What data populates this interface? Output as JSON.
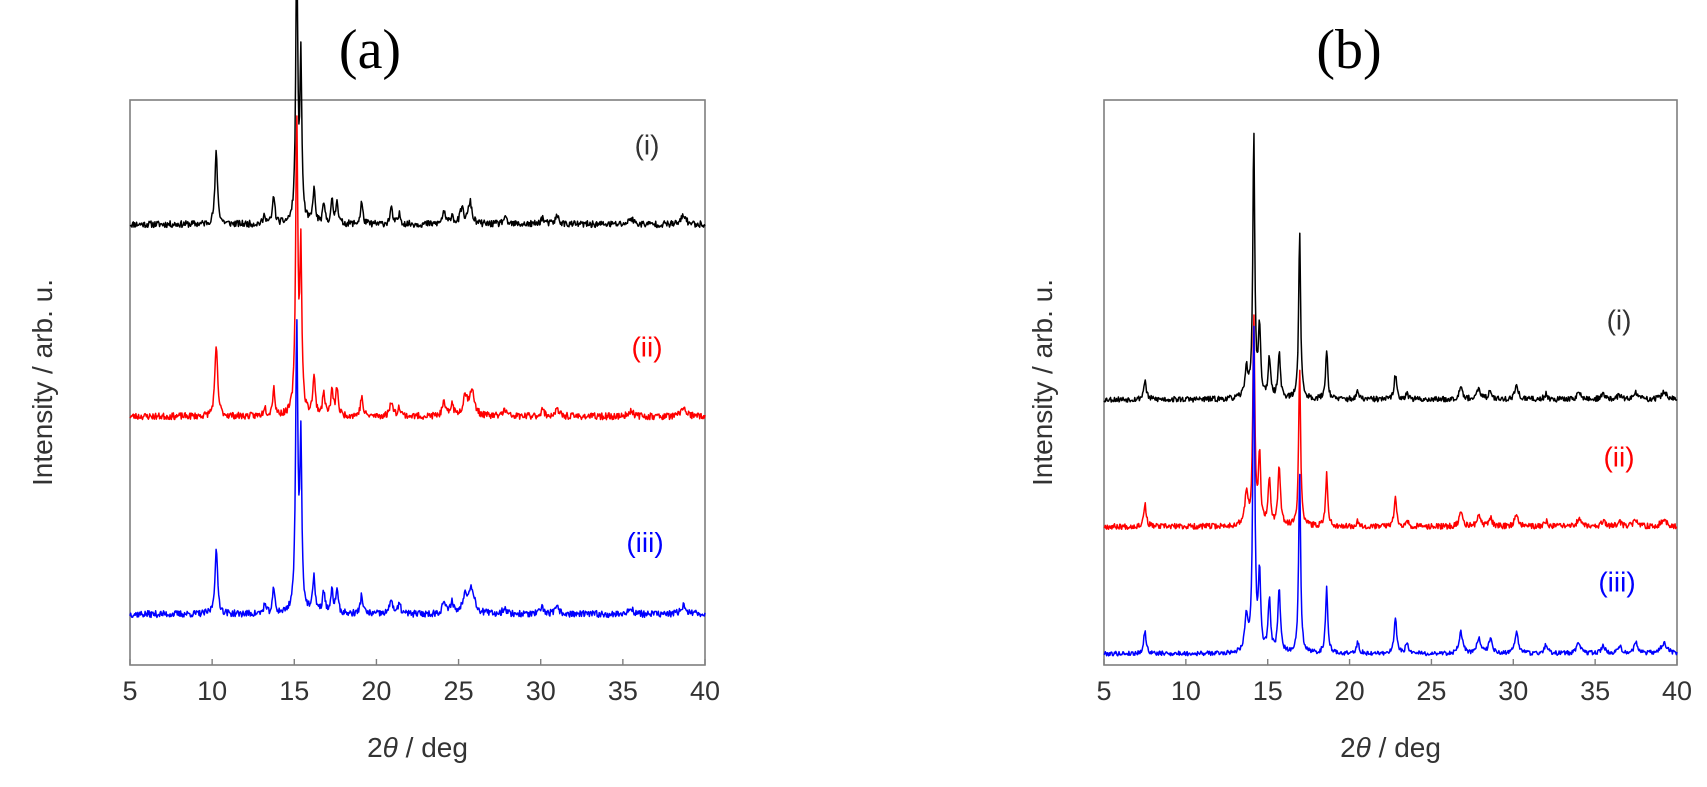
{
  "chart_data": [
    {
      "panel_label": "(a)",
      "type": "line",
      "xlabel_prefix": "2",
      "xlabel_theta": "θ",
      "xlabel_suffix": " / deg",
      "ylabel": "Intensity / arb. u.",
      "xlim": [
        5,
        40
      ],
      "xticks": [
        5,
        10,
        15,
        20,
        25,
        30,
        35,
        40
      ],
      "yticks": [],
      "grid": false,
      "series": [
        {
          "name": "(i)",
          "color": "#000000",
          "baseline": 0.78,
          "scale": 0.56,
          "noise": 0.006,
          "seed": 11,
          "peaks": [
            [
              10.25,
              0.23,
              0.09
            ],
            [
              13.2,
              0.03,
              0.08
            ],
            [
              13.75,
              0.09,
              0.08
            ],
            [
              15.15,
              0.88,
              0.07
            ],
            [
              15.4,
              0.5,
              0.07
            ],
            [
              16.2,
              0.11,
              0.08
            ],
            [
              16.8,
              0.06,
              0.08
            ],
            [
              17.3,
              0.07,
              0.08
            ],
            [
              17.6,
              0.08,
              0.07
            ],
            [
              19.1,
              0.07,
              0.08
            ],
            [
              20.9,
              0.05,
              0.09
            ],
            [
              21.4,
              0.03,
              0.09
            ],
            [
              24.1,
              0.04,
              0.1
            ],
            [
              24.6,
              0.03,
              0.09
            ],
            [
              25.2,
              0.05,
              0.12
            ],
            [
              25.7,
              0.07,
              0.13
            ],
            [
              27.8,
              0.02,
              0.12
            ],
            [
              30.1,
              0.02,
              0.12
            ],
            [
              31.0,
              0.025,
              0.14
            ],
            [
              35.5,
              0.02,
              0.15
            ],
            [
              38.7,
              0.03,
              0.15
            ]
          ]
        },
        {
          "name": "(ii)",
          "color": "#ff0000",
          "baseline": 0.44,
          "scale": 0.56,
          "noise": 0.006,
          "seed": 23,
          "peaks": [
            [
              10.25,
              0.22,
              0.1
            ],
            [
              13.2,
              0.03,
              0.08
            ],
            [
              13.75,
              0.09,
              0.08
            ],
            [
              15.15,
              0.92,
              0.08
            ],
            [
              15.4,
              0.5,
              0.07
            ],
            [
              16.2,
              0.12,
              0.09
            ],
            [
              16.8,
              0.07,
              0.09
            ],
            [
              17.3,
              0.08,
              0.08
            ],
            [
              17.6,
              0.09,
              0.08
            ],
            [
              19.1,
              0.06,
              0.09
            ],
            [
              20.9,
              0.05,
              0.1
            ],
            [
              21.4,
              0.03,
              0.1
            ],
            [
              24.1,
              0.04,
              0.11
            ],
            [
              24.6,
              0.04,
              0.1
            ],
            [
              25.4,
              0.06,
              0.15
            ],
            [
              25.8,
              0.08,
              0.18
            ],
            [
              27.8,
              0.02,
              0.13
            ],
            [
              30.1,
              0.02,
              0.13
            ],
            [
              31.0,
              0.02,
              0.15
            ],
            [
              35.5,
              0.02,
              0.15
            ],
            [
              38.7,
              0.03,
              0.16
            ]
          ]
        },
        {
          "name": "(iii)",
          "color": "#0000ff",
          "baseline": 0.09,
          "scale": 0.56,
          "noise": 0.006,
          "seed": 37,
          "peaks": [
            [
              10.25,
              0.2,
              0.1
            ],
            [
              13.2,
              0.03,
              0.08
            ],
            [
              13.75,
              0.08,
              0.08
            ],
            [
              15.15,
              0.9,
              0.08
            ],
            [
              15.4,
              0.52,
              0.07
            ],
            [
              16.2,
              0.11,
              0.09
            ],
            [
              16.8,
              0.07,
              0.09
            ],
            [
              17.3,
              0.07,
              0.08
            ],
            [
              17.6,
              0.08,
              0.08
            ],
            [
              19.1,
              0.06,
              0.09
            ],
            [
              20.9,
              0.05,
              0.1
            ],
            [
              21.4,
              0.03,
              0.1
            ],
            [
              24.1,
              0.04,
              0.11
            ],
            [
              24.6,
              0.04,
              0.1
            ],
            [
              25.4,
              0.06,
              0.16
            ],
            [
              25.8,
              0.08,
              0.2
            ],
            [
              27.8,
              0.02,
              0.13
            ],
            [
              30.1,
              0.02,
              0.13
            ],
            [
              31.0,
              0.02,
              0.15
            ],
            [
              35.5,
              0.02,
              0.15
            ],
            [
              38.7,
              0.03,
              0.16
            ]
          ]
        }
      ]
    },
    {
      "panel_label": "(b)",
      "type": "line",
      "xlabel_prefix": "2",
      "xlabel_theta": "θ",
      "xlabel_suffix": " / deg",
      "ylabel": "Intensity / arb. u.",
      "xlim": [
        5,
        40
      ],
      "xticks": [
        5,
        10,
        15,
        20,
        25,
        30,
        35,
        40
      ],
      "yticks": [],
      "grid": false,
      "series": [
        {
          "name": "(i)",
          "color": "#000000",
          "baseline": 0.47,
          "scale": 0.62,
          "noise": 0.005,
          "seed": 53,
          "peaks": [
            [
              7.5,
              0.055,
              0.09
            ],
            [
              13.7,
              0.08,
              0.12
            ],
            [
              14.15,
              0.75,
              0.07
            ],
            [
              14.5,
              0.2,
              0.08
            ],
            [
              15.1,
              0.11,
              0.09
            ],
            [
              15.7,
              0.13,
              0.09
            ],
            [
              16.95,
              0.48,
              0.07
            ],
            [
              18.6,
              0.14,
              0.08
            ],
            [
              20.5,
              0.02,
              0.1
            ],
            [
              22.8,
              0.07,
              0.09
            ],
            [
              23.5,
              0.02,
              0.09
            ],
            [
              26.8,
              0.04,
              0.12
            ],
            [
              27.9,
              0.03,
              0.12
            ],
            [
              28.6,
              0.025,
              0.12
            ],
            [
              30.2,
              0.04,
              0.12
            ],
            [
              32.0,
              0.015,
              0.12
            ],
            [
              34.0,
              0.02,
              0.14
            ],
            [
              35.5,
              0.015,
              0.14
            ],
            [
              36.5,
              0.012,
              0.14
            ],
            [
              37.5,
              0.02,
              0.14
            ],
            [
              39.2,
              0.02,
              0.2
            ]
          ]
        },
        {
          "name": "(ii)",
          "color": "#ff0000",
          "baseline": 0.245,
          "scale": 0.62,
          "noise": 0.005,
          "seed": 67,
          "peaks": [
            [
              7.5,
              0.065,
              0.09
            ],
            [
              13.7,
              0.09,
              0.12
            ],
            [
              14.15,
              0.6,
              0.07
            ],
            [
              14.5,
              0.2,
              0.08
            ],
            [
              15.1,
              0.13,
              0.09
            ],
            [
              15.7,
              0.17,
              0.09
            ],
            [
              16.95,
              0.46,
              0.07
            ],
            [
              18.6,
              0.15,
              0.08
            ],
            [
              20.5,
              0.015,
              0.1
            ],
            [
              22.8,
              0.08,
              0.09
            ],
            [
              23.5,
              0.02,
              0.09
            ],
            [
              26.8,
              0.04,
              0.12
            ],
            [
              27.9,
              0.03,
              0.12
            ],
            [
              28.6,
              0.025,
              0.12
            ],
            [
              30.2,
              0.04,
              0.12
            ],
            [
              32.0,
              0.015,
              0.12
            ],
            [
              34.0,
              0.02,
              0.14
            ],
            [
              35.5,
              0.015,
              0.14
            ],
            [
              36.5,
              0.012,
              0.14
            ],
            [
              37.5,
              0.02,
              0.14
            ],
            [
              39.2,
              0.02,
              0.2
            ]
          ]
        },
        {
          "name": "(iii)",
          "color": "#0000ff",
          "baseline": 0.02,
          "scale": 0.62,
          "noise": 0.004,
          "seed": 79,
          "peaks": [
            [
              7.5,
              0.065,
              0.09
            ],
            [
              13.7,
              0.1,
              0.12
            ],
            [
              14.15,
              0.93,
              0.07
            ],
            [
              14.5,
              0.22,
              0.08
            ],
            [
              15.1,
              0.15,
              0.09
            ],
            [
              15.7,
              0.18,
              0.09
            ],
            [
              16.95,
              0.52,
              0.07
            ],
            [
              18.6,
              0.19,
              0.08
            ],
            [
              20.5,
              0.03,
              0.1
            ],
            [
              22.8,
              0.1,
              0.09
            ],
            [
              23.5,
              0.03,
              0.1
            ],
            [
              26.8,
              0.06,
              0.13
            ],
            [
              27.9,
              0.045,
              0.13
            ],
            [
              28.6,
              0.04,
              0.13
            ],
            [
              30.2,
              0.06,
              0.13
            ],
            [
              32.0,
              0.025,
              0.13
            ],
            [
              34.0,
              0.03,
              0.15
            ],
            [
              35.5,
              0.02,
              0.15
            ],
            [
              36.5,
              0.02,
              0.15
            ],
            [
              37.5,
              0.03,
              0.15
            ],
            [
              39.2,
              0.03,
              0.22
            ]
          ]
        }
      ]
    }
  ]
}
